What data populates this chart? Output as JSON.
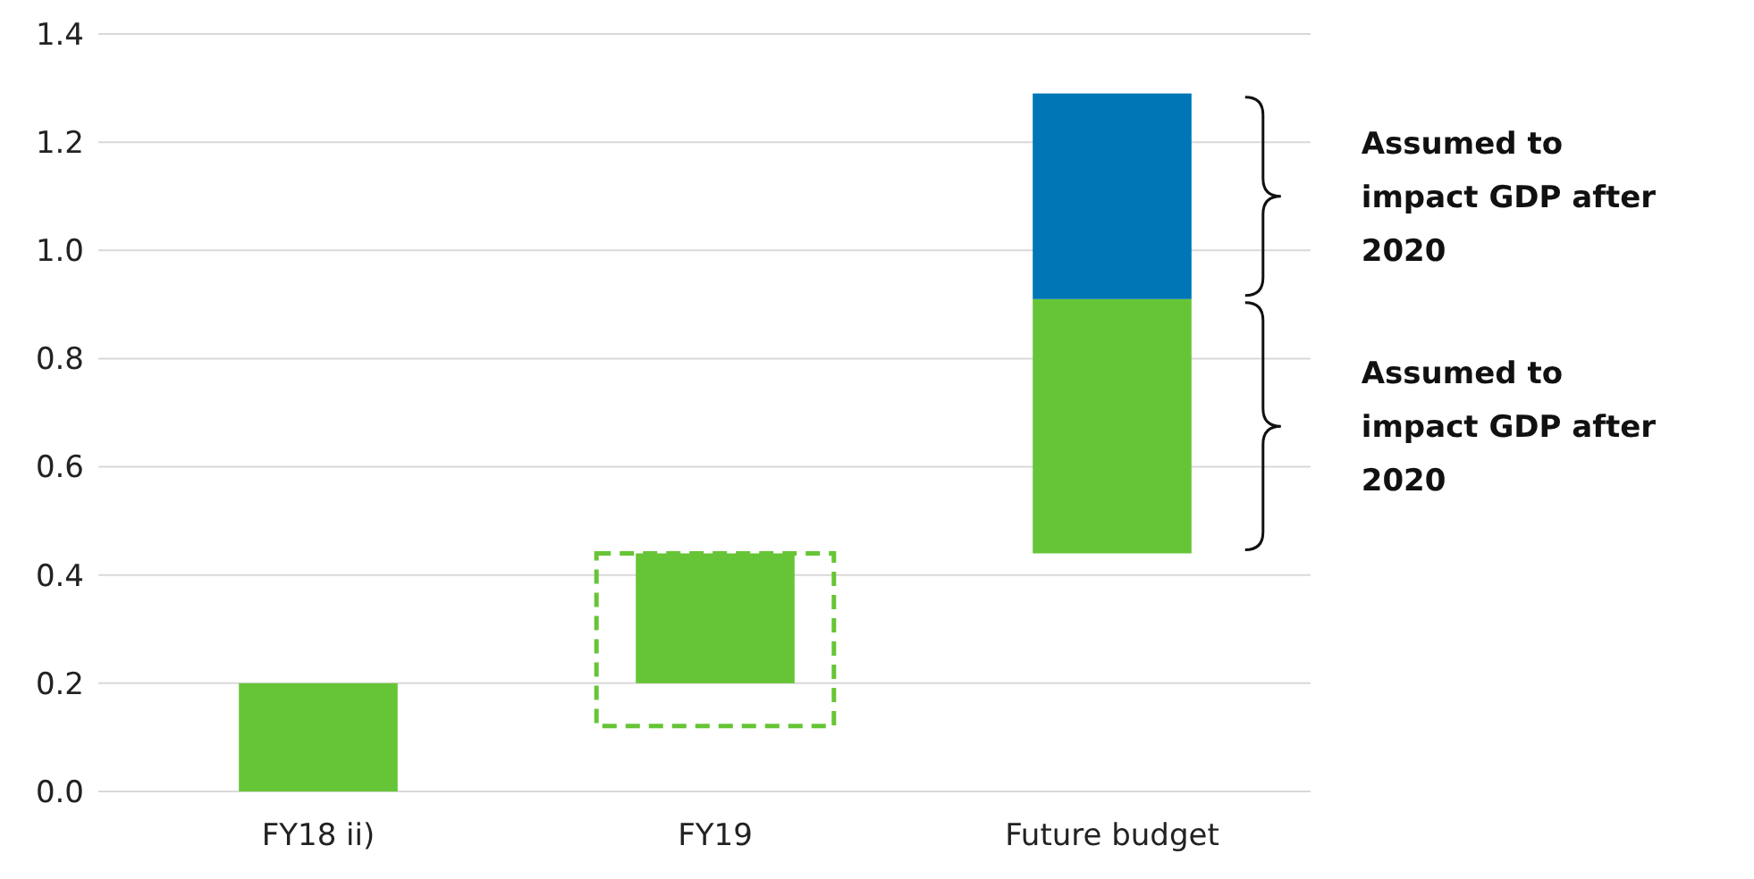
{
  "chart_data": {
    "type": "bar",
    "categories": [
      "FY18 ii)",
      "FY19",
      "Future budget"
    ],
    "series": [
      {
        "color": "#66c536",
        "values": [
          0.2,
          0.24,
          0.47
        ],
        "base": [
          0,
          0.2,
          0.44
        ]
      },
      {
        "color": "#0076b6",
        "values": [
          null,
          null,
          0.38
        ],
        "base": [
          null,
          null,
          0.91
        ]
      }
    ],
    "stacked": false,
    "ylim": [
      0,
      1.4
    ],
    "yticks": [
      {
        "value": 0,
        "label": "0.0"
      },
      0.2,
      0.4,
      0.6,
      0.8,
      {
        "value": 1,
        "label": "1.0"
      },
      1.2,
      1.4
    ],
    "grid": "y",
    "annotations": [
      "Assumed to impact GDP after 2020",
      "Assumed to impact GDP after 2020"
    ]
  }
}
